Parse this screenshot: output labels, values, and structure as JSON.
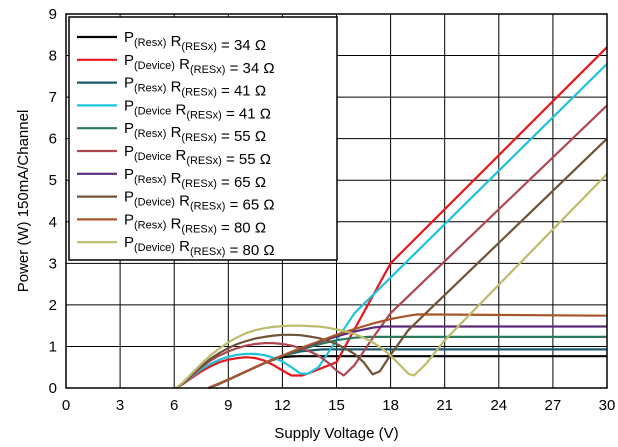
{
  "chart_data": {
    "type": "line",
    "xlabel": "Supply Voltage (V)",
    "ylabel": "Power (W) 150mA/Channel",
    "xlim": [
      0,
      30
    ],
    "ylim": [
      0,
      9
    ],
    "x_ticks": [
      "0",
      "3",
      "6",
      "9",
      "12",
      "15",
      "18",
      "21",
      "24",
      "27",
      "30"
    ],
    "y_ticks": [
      "0",
      "1",
      "2",
      "3",
      "4",
      "5",
      "6",
      "7",
      "8",
      "9"
    ],
    "grid": true,
    "legend_position": "top-left",
    "series": [
      {
        "legend": {
          "p_main": "P",
          "p_sub": "(Resx)",
          "r_main": "R",
          "r_sub": "(RESx)",
          "value": " = 34 Ω"
        },
        "color": "#000000",
        "points": [
          [
            7.9,
            0
          ],
          [
            8.5,
            0.1
          ],
          [
            9,
            0.2
          ],
          [
            9.5,
            0.3
          ],
          [
            10,
            0.4
          ],
          [
            10.5,
            0.5
          ],
          [
            11,
            0.6
          ],
          [
            11.5,
            0.68
          ],
          [
            12,
            0.74
          ],
          [
            12.5,
            0.76
          ],
          [
            13,
            0.765
          ],
          [
            30,
            0.765
          ]
        ]
      },
      {
        "legend": {
          "p_main": "P",
          "p_sub": "(Device)",
          "r_main": "R",
          "r_sub": "(RESx)",
          "value": " = 34 Ω"
        },
        "color": "#e8161d",
        "points": [
          [
            6.1,
            0
          ],
          [
            6.5,
            0.1
          ],
          [
            7,
            0.25
          ],
          [
            7.5,
            0.4
          ],
          [
            8,
            0.52
          ],
          [
            8.5,
            0.62
          ],
          [
            9,
            0.68
          ],
          [
            9.5,
            0.72
          ],
          [
            10,
            0.74
          ],
          [
            10.5,
            0.72
          ],
          [
            11,
            0.66
          ],
          [
            11.5,
            0.55
          ],
          [
            12,
            0.42
          ],
          [
            12.5,
            0.3
          ],
          [
            13.1,
            0.3
          ],
          [
            13.5,
            0.36
          ],
          [
            15,
            0.62
          ],
          [
            18,
            3.0
          ],
          [
            30,
            8.2
          ]
        ]
      },
      {
        "legend": {
          "p_main": "P",
          "p_sub": "(Resx)",
          "r_main": "R",
          "r_sub": "(RESx)",
          "value": " = 41 Ω"
        },
        "color": "#1c5a6c",
        "points": [
          [
            7.9,
            0
          ],
          [
            8.5,
            0.1
          ],
          [
            9,
            0.2
          ],
          [
            9.5,
            0.3
          ],
          [
            10,
            0.4
          ],
          [
            10.5,
            0.5
          ],
          [
            11,
            0.6
          ],
          [
            11.5,
            0.7
          ],
          [
            12,
            0.78
          ],
          [
            13,
            0.88
          ],
          [
            14.2,
            0.93
          ],
          [
            30,
            0.93
          ]
        ]
      },
      {
        "legend": {
          "p_main": "P",
          "p_sub": "(Device",
          "r_main": "R",
          "r_sub": "(RESx)",
          "value": " = 41 Ω"
        },
        "color": "#1ec2dc",
        "points": [
          [
            6.1,
            0
          ],
          [
            6.5,
            0.1
          ],
          [
            7,
            0.28
          ],
          [
            7.5,
            0.45
          ],
          [
            8,
            0.58
          ],
          [
            8.5,
            0.68
          ],
          [
            9,
            0.75
          ],
          [
            9.5,
            0.8
          ],
          [
            10,
            0.82
          ],
          [
            10.5,
            0.82
          ],
          [
            11,
            0.79
          ],
          [
            11.5,
            0.73
          ],
          [
            12,
            0.64
          ],
          [
            12.5,
            0.5
          ],
          [
            13,
            0.35
          ],
          [
            13.4,
            0.34
          ],
          [
            14,
            0.5
          ],
          [
            15,
            1.15
          ],
          [
            16,
            1.8
          ],
          [
            30,
            7.8
          ]
        ]
      },
      {
        "legend": {
          "p_main": "P",
          "p_sub": "(Resx)",
          "r_main": "R",
          "r_sub": "(RESx)",
          "value": " = 55 Ω"
        },
        "color": "#2a7a5a",
        "points": [
          [
            7.9,
            0
          ],
          [
            9,
            0.2
          ],
          [
            10,
            0.4
          ],
          [
            11,
            0.6
          ],
          [
            12,
            0.78
          ],
          [
            13,
            0.92
          ],
          [
            14,
            1.05
          ],
          [
            15,
            1.15
          ],
          [
            16,
            1.21
          ],
          [
            16.8,
            1.23
          ],
          [
            30,
            1.23
          ]
        ]
      },
      {
        "legend": {
          "p_main": "P",
          "p_sub": "(Device",
          "r_main": "R",
          "r_sub": "(RESx)",
          "value": " = 55 Ω"
        },
        "color": "#b04652",
        "points": [
          [
            6.1,
            0
          ],
          [
            6.5,
            0.1
          ],
          [
            7,
            0.3
          ],
          [
            7.5,
            0.5
          ],
          [
            8,
            0.66
          ],
          [
            8.5,
            0.78
          ],
          [
            9,
            0.88
          ],
          [
            9.5,
            0.96
          ],
          [
            10,
            1.02
          ],
          [
            10.5,
            1.06
          ],
          [
            11,
            1.08
          ],
          [
            11.5,
            1.08
          ],
          [
            12,
            1.06
          ],
          [
            12.5,
            1.02
          ],
          [
            13,
            0.96
          ],
          [
            13.5,
            0.88
          ],
          [
            14,
            0.78
          ],
          [
            14.5,
            0.62
          ],
          [
            15,
            0.42
          ],
          [
            15.4,
            0.3
          ],
          [
            16,
            0.55
          ],
          [
            17,
            1.2
          ],
          [
            18,
            1.8
          ],
          [
            30,
            6.8
          ]
        ]
      },
      {
        "legend": {
          "p_main": "P",
          "p_sub": "(Resx)",
          "r_main": "R",
          "r_sub": "(RESx)",
          "value": " = 65 Ω"
        },
        "color": "#5b2a7a",
        "points": [
          [
            7.9,
            0
          ],
          [
            9,
            0.2
          ],
          [
            10,
            0.4
          ],
          [
            11,
            0.6
          ],
          [
            12,
            0.78
          ],
          [
            13,
            0.95
          ],
          [
            14,
            1.1
          ],
          [
            15,
            1.24
          ],
          [
            16,
            1.36
          ],
          [
            17,
            1.45
          ],
          [
            17.6,
            1.48
          ],
          [
            30,
            1.48
          ]
        ]
      },
      {
        "legend": {
          "p_main": "P",
          "p_sub": "(Device)",
          "r_main": "R",
          "r_sub": "(RESx)",
          "value": " = 65 Ω"
        },
        "color": "#6e5336",
        "points": [
          [
            6.1,
            0
          ],
          [
            6.5,
            0.12
          ],
          [
            7,
            0.32
          ],
          [
            7.5,
            0.52
          ],
          [
            8,
            0.7
          ],
          [
            8.5,
            0.84
          ],
          [
            9,
            0.96
          ],
          [
            9.5,
            1.06
          ],
          [
            10,
            1.13
          ],
          [
            10.5,
            1.19
          ],
          [
            11,
            1.23
          ],
          [
            11.5,
            1.26
          ],
          [
            12,
            1.28
          ],
          [
            12.5,
            1.28
          ],
          [
            13,
            1.27
          ],
          [
            13.5,
            1.24
          ],
          [
            14,
            1.2
          ],
          [
            14.5,
            1.14
          ],
          [
            15,
            1.06
          ],
          [
            15.5,
            0.95
          ],
          [
            16,
            0.82
          ],
          [
            16.5,
            0.62
          ],
          [
            17,
            0.33
          ],
          [
            17.4,
            0.4
          ],
          [
            18,
            0.8
          ],
          [
            19,
            1.4
          ],
          [
            30,
            6.0
          ]
        ]
      },
      {
        "legend": {
          "p_main": "P",
          "p_sub": "(Resx)",
          "r_main": "R",
          "r_sub": "(RESx)",
          "value": " = 80 Ω"
        },
        "color": "#a8562a",
        "points": [
          [
            7.9,
            0
          ],
          [
            9,
            0.2
          ],
          [
            10,
            0.4
          ],
          [
            11,
            0.6
          ],
          [
            12,
            0.78
          ],
          [
            13,
            0.96
          ],
          [
            14,
            1.12
          ],
          [
            15,
            1.28
          ],
          [
            16,
            1.42
          ],
          [
            17,
            1.55
          ],
          [
            18,
            1.66
          ],
          [
            19,
            1.74
          ],
          [
            19.5,
            1.77
          ],
          [
            30,
            1.74
          ]
        ]
      },
      {
        "legend": {
          "p_main": "P",
          "p_sub": "(Device)",
          "r_main": "R",
          "r_sub": "(RESx)",
          "value": " = 80 Ω"
        },
        "color": "#bdbb6c",
        "points": [
          [
            6.1,
            0
          ],
          [
            6.5,
            0.14
          ],
          [
            7,
            0.36
          ],
          [
            7.5,
            0.58
          ],
          [
            8,
            0.78
          ],
          [
            8.5,
            0.95
          ],
          [
            9,
            1.1
          ],
          [
            9.5,
            1.22
          ],
          [
            10,
            1.32
          ],
          [
            10.5,
            1.39
          ],
          [
            11,
            1.44
          ],
          [
            11.5,
            1.47
          ],
          [
            12,
            1.49
          ],
          [
            12.5,
            1.5
          ],
          [
            13,
            1.5
          ],
          [
            13.5,
            1.49
          ],
          [
            14,
            1.48
          ],
          [
            14.5,
            1.45
          ],
          [
            15,
            1.41
          ],
          [
            15.5,
            1.36
          ],
          [
            16,
            1.3
          ],
          [
            16.5,
            1.21
          ],
          [
            17,
            1.1
          ],
          [
            17.5,
            0.96
          ],
          [
            18,
            0.78
          ],
          [
            18.5,
            0.56
          ],
          [
            19,
            0.34
          ],
          [
            19.3,
            0.3
          ],
          [
            20,
            0.6
          ],
          [
            21,
            1.15
          ],
          [
            30,
            5.15
          ]
        ]
      }
    ]
  }
}
